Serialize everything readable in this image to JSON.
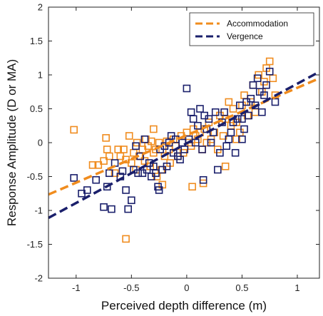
{
  "chart_data": {
    "type": "scatter",
    "title": "",
    "xlabel": "Perceived depth difference (m)",
    "ylabel": "Response Amplitude (D or MA)",
    "xlim": [
      -1.25,
      1.2
    ],
    "ylim": [
      -2,
      2
    ],
    "xticks": [
      {
        "v": -1,
        "label": "-1"
      },
      {
        "v": -0.5,
        "label": "-0.5"
      },
      {
        "v": 0,
        "label": "0"
      },
      {
        "v": 0.5,
        "label": "0.5"
      },
      {
        "v": 1,
        "label": "1"
      }
    ],
    "yticks": [
      {
        "v": -2,
        "label": "-2"
      },
      {
        "v": -1.5,
        "label": "-1.5"
      },
      {
        "v": -1,
        "label": "-1"
      },
      {
        "v": -0.5,
        "label": "-0.5"
      },
      {
        "v": 0,
        "label": "0"
      },
      {
        "v": 0.5,
        "label": "0.5"
      },
      {
        "v": 1,
        "label": "1"
      },
      {
        "v": 1.5,
        "label": "1.5"
      },
      {
        "v": 2,
        "label": "2"
      }
    ],
    "grid": false,
    "legend_position": "top-right",
    "series": [
      {
        "name": "Accommodation",
        "color": "#f08c1e",
        "marker": "square-open",
        "fit": {
          "slope": 0.7,
          "intercept": 0.11
        },
        "points": [
          [
            -1.02,
            0.19
          ],
          [
            -0.85,
            -0.33
          ],
          [
            -0.8,
            -0.33
          ],
          [
            -0.75,
            -0.27
          ],
          [
            -0.73,
            0.07
          ],
          [
            -0.72,
            -0.1
          ],
          [
            -0.7,
            -0.2
          ],
          [
            -0.65,
            -0.45
          ],
          [
            -0.62,
            -0.1
          ],
          [
            -0.6,
            -0.2
          ],
          [
            -0.57,
            -0.1
          ],
          [
            -0.55,
            -0.25
          ],
          [
            -0.52,
            0.1
          ],
          [
            -0.5,
            -0.3
          ],
          [
            -0.48,
            -0.15
          ],
          [
            -0.46,
            -0.4
          ],
          [
            -0.45,
            0.0
          ],
          [
            -0.43,
            -0.2
          ],
          [
            -0.4,
            -0.1
          ],
          [
            -0.38,
            -0.27
          ],
          [
            -0.37,
            0.05
          ],
          [
            -0.35,
            -0.05
          ],
          [
            -0.33,
            -0.35
          ],
          [
            -0.32,
            0.02
          ],
          [
            -0.3,
            -0.15
          ],
          [
            -0.28,
            -0.1
          ],
          [
            -0.27,
            -0.5
          ],
          [
            -0.25,
            0.0
          ],
          [
            -0.23,
            -0.4
          ],
          [
            -0.22,
            -0.62
          ],
          [
            -0.2,
            -0.2
          ],
          [
            -0.18,
            0.02
          ],
          [
            -0.16,
            -0.1
          ],
          [
            -0.15,
            -0.3
          ],
          [
            -0.12,
            0.05
          ],
          [
            -0.1,
            -0.05
          ],
          [
            -0.08,
            -0.2
          ],
          [
            -0.05,
            0.1
          ],
          [
            -0.03,
            -0.15
          ],
          [
            0.0,
            0.15
          ],
          [
            0.02,
            0.0
          ],
          [
            0.04,
            -0.05
          ],
          [
            0.06,
            0.2
          ],
          [
            0.08,
            0.1
          ],
          [
            0.1,
            0.05
          ],
          [
            0.12,
            0.15
          ],
          [
            0.14,
            -0.1
          ],
          [
            0.16,
            0.2
          ],
          [
            0.18,
            0.0
          ],
          [
            0.2,
            0.3
          ],
          [
            0.22,
            0.05
          ],
          [
            0.25,
            0.15
          ],
          [
            0.28,
            -0.1
          ],
          [
            0.3,
            0.4
          ],
          [
            0.33,
            0.1
          ],
          [
            0.35,
            0.35
          ],
          [
            0.38,
            0.6
          ],
          [
            0.4,
            0.25
          ],
          [
            0.42,
            0.5
          ],
          [
            0.45,
            0.3
          ],
          [
            0.48,
            0.15
          ],
          [
            0.5,
            0.55
          ],
          [
            0.52,
            0.7
          ],
          [
            0.55,
            0.4
          ],
          [
            0.58,
            0.6
          ],
          [
            0.6,
            0.85
          ],
          [
            0.62,
            0.45
          ],
          [
            0.65,
            1.0
          ],
          [
            0.68,
            0.75
          ],
          [
            0.7,
            0.9
          ],
          [
            0.72,
            1.1
          ],
          [
            0.75,
            1.2
          ],
          [
            0.78,
            0.95
          ],
          [
            0.8,
            0.7
          ],
          [
            0.15,
            -0.6
          ],
          [
            0.35,
            -0.35
          ],
          [
            -0.55,
            -1.42
          ],
          [
            0.05,
            -0.65
          ],
          [
            0.45,
            0.05
          ],
          [
            -0.3,
            0.2
          ]
        ]
      },
      {
        "name": "Vergence",
        "color": "#1a1f6b",
        "marker": "square-open",
        "fit": {
          "slope": 0.88,
          "intercept": -0.01
        },
        "points": [
          [
            -1.02,
            -0.52
          ],
          [
            -0.95,
            -0.75
          ],
          [
            -0.9,
            -0.7
          ],
          [
            -0.82,
            -0.55
          ],
          [
            -0.75,
            -0.95
          ],
          [
            -0.72,
            -0.65
          ],
          [
            -0.68,
            -0.98
          ],
          [
            -0.65,
            -0.3
          ],
          [
            -0.6,
            -0.5
          ],
          [
            -0.58,
            -0.42
          ],
          [
            -0.55,
            -0.7
          ],
          [
            -0.53,
            -0.98
          ],
          [
            -0.5,
            -0.85
          ],
          [
            -0.48,
            -0.4
          ],
          [
            -0.46,
            -0.05
          ],
          [
            -0.44,
            -0.45
          ],
          [
            -0.42,
            -0.2
          ],
          [
            -0.4,
            -0.45
          ],
          [
            -0.38,
            0.05
          ],
          [
            -0.36,
            -0.4
          ],
          [
            -0.34,
            -0.3
          ],
          [
            -0.32,
            -0.5
          ],
          [
            -0.3,
            -0.35
          ],
          [
            -0.28,
            -0.45
          ],
          [
            -0.26,
            -0.65
          ],
          [
            -0.24,
            -0.1
          ],
          [
            -0.22,
            -0.4
          ],
          [
            -0.2,
            -0.05
          ],
          [
            -0.18,
            -0.35
          ],
          [
            -0.16,
            0.0
          ],
          [
            -0.14,
            0.1
          ],
          [
            -0.12,
            -0.15
          ],
          [
            -0.1,
            0.05
          ],
          [
            -0.08,
            -0.2
          ],
          [
            -0.06,
            -0.25
          ],
          [
            -0.04,
            0.0
          ],
          [
            -0.02,
            -0.1
          ],
          [
            0.0,
            0.8
          ],
          [
            0.02,
            0.05
          ],
          [
            0.04,
            0.45
          ],
          [
            0.06,
            0.35
          ],
          [
            0.08,
            0.0
          ],
          [
            0.1,
            0.25
          ],
          [
            0.12,
            0.5
          ],
          [
            0.14,
            -0.1
          ],
          [
            0.16,
            0.4
          ],
          [
            0.18,
            0.2
          ],
          [
            0.2,
            0.35
          ],
          [
            0.22,
            0.0
          ],
          [
            0.24,
            0.15
          ],
          [
            0.26,
            0.45
          ],
          [
            0.28,
            -0.4
          ],
          [
            0.3,
            -0.15
          ],
          [
            0.32,
            0.3
          ],
          [
            0.34,
            0.45
          ],
          [
            0.36,
            -0.05
          ],
          [
            0.38,
            0.05
          ],
          [
            0.4,
            0.15
          ],
          [
            0.42,
            0.3
          ],
          [
            0.44,
            -0.15
          ],
          [
            0.46,
            0.35
          ],
          [
            0.48,
            0.55
          ],
          [
            0.5,
            0.35
          ],
          [
            0.52,
            0.2
          ],
          [
            0.54,
            0.6
          ],
          [
            0.56,
            0.4
          ],
          [
            0.58,
            0.65
          ],
          [
            0.6,
            0.85
          ],
          [
            0.62,
            0.55
          ],
          [
            0.64,
            0.95
          ],
          [
            0.66,
            0.75
          ],
          [
            0.68,
            0.45
          ],
          [
            0.7,
            0.7
          ],
          [
            0.72,
            0.85
          ],
          [
            0.75,
            1.05
          ],
          [
            0.8,
            0.6
          ],
          [
            0.5,
            0.05
          ],
          [
            0.15,
            -0.55
          ],
          [
            -0.25,
            -0.7
          ],
          [
            -0.7,
            -0.45
          ]
        ]
      }
    ]
  }
}
